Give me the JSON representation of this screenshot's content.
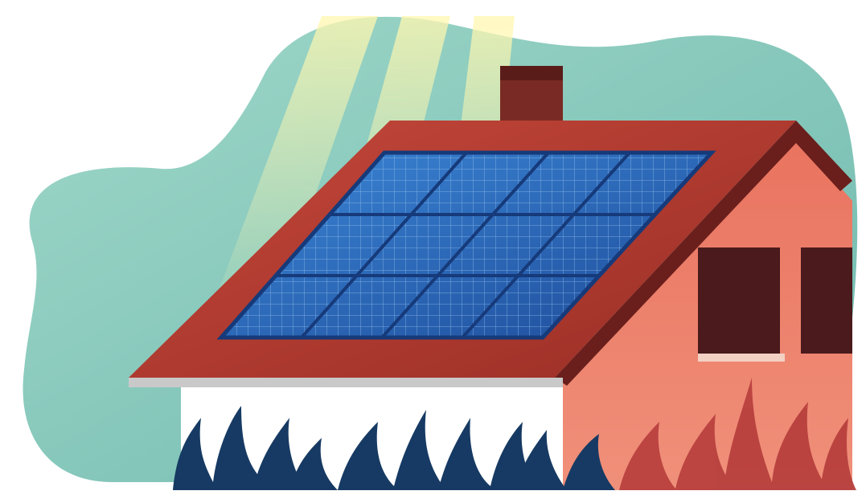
{
  "illustration": {
    "subject": "solar-panels-on-house-roof",
    "colors": {
      "background": "#ffffff",
      "teal_blob": "#8fd0c4",
      "teal_blob_dark": "#6fb8ae",
      "sun_ray": "#f3f19a",
      "roof_red": "#b23b2e",
      "roof_dark": "#6a1f1c",
      "wall_coral": "#e9735f",
      "wall_white": "#ffffff",
      "chimney": "#7a2a24",
      "window_dark": "#4a1a1c",
      "panel_blue": "#2f74c9",
      "panel_dark": "#1e4c9a",
      "panel_grid": "#9cc6ee",
      "plant_navy": "#163a63",
      "plant_teal": "#1f4f78",
      "plant_red": "#b8403e"
    },
    "icons": {
      "sun_rays": "sun-rays-icon",
      "chimney": "chimney-icon",
      "solar_array": "solar-panel-icon",
      "window": "window-icon",
      "plants": "plant-icon"
    }
  }
}
